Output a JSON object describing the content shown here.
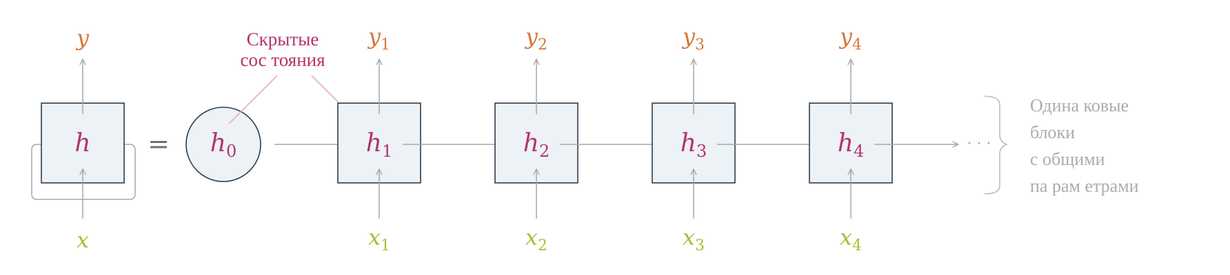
{
  "colors": {
    "hidden": "#b5336b",
    "input": "#a5c134",
    "output": "#d5773a",
    "box_fill": "#ecf2f6",
    "box_stroke": "#2f3b4a",
    "arrow": "#a6a6a6",
    "annotation_line": "#e3a1bd",
    "side_note": "#a9acb1"
  },
  "folded": {
    "hidden": "h",
    "input": "x",
    "output": "y"
  },
  "equals": "=",
  "initial_state": {
    "symbol": "h",
    "index": "0"
  },
  "annotation": {
    "line1": "Скрытые",
    "line2": "сос тояния"
  },
  "steps": [
    {
      "hidden": "h",
      "input": "x",
      "output": "y",
      "index": "1"
    },
    {
      "hidden": "h",
      "input": "x",
      "output": "y",
      "index": "2"
    },
    {
      "hidden": "h",
      "input": "x",
      "output": "y",
      "index": "3"
    },
    {
      "hidden": "h",
      "input": "x",
      "output": "y",
      "index": "4"
    }
  ],
  "ellipsis": "· · ·",
  "side_note": {
    "lines": [
      "Одина ковые",
      "блоки",
      "с общими",
      "па рам етрами"
    ]
  }
}
